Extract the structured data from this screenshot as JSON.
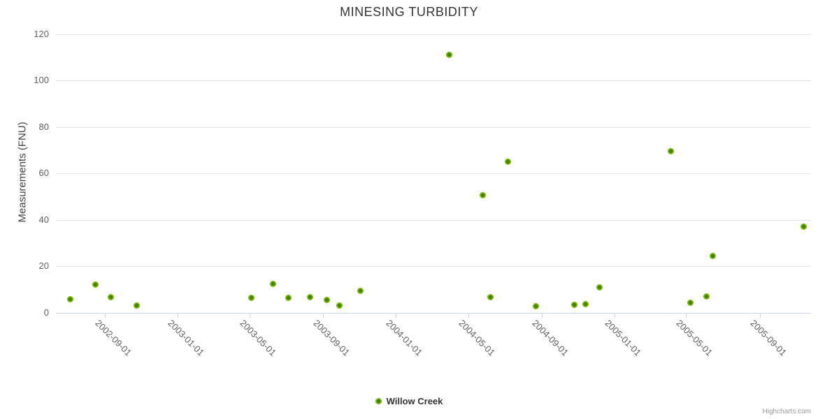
{
  "chart": {
    "title": "MINESING TURBIDITY",
    "y_axis_title": "Measurements (FNU)",
    "series_name": "Willow Creek",
    "credits": "Highcharts.com"
  },
  "chart_data": {
    "type": "scatter",
    "title": "MINESING TURBIDITY",
    "xlabel": "",
    "ylabel": "Measurements (FNU)",
    "ylim": [
      0,
      120
    ],
    "y_ticks": [
      0,
      20,
      40,
      60,
      80,
      100,
      120
    ],
    "x_ticks": [
      "2002-09-01",
      "2003-01-01",
      "2003-05-01",
      "2003-09-01",
      "2004-01-01",
      "2004-05-01",
      "2004-09-01",
      "2005-01-01",
      "2005-05-01",
      "2005-09-01"
    ],
    "x_range": [
      "2002-06-11",
      "2005-11-26"
    ],
    "grid": true,
    "legend_position": "bottom-center",
    "colors": {
      "marker": "#7ab500",
      "marker_core": "#3f7d05",
      "grid_line": "#e6e6e6",
      "axis_line": "#ccd6eb",
      "axis_label": "#606060",
      "title": "#333333",
      "credits": "#999999"
    },
    "series": [
      {
        "name": "Willow Creek",
        "points": [
          [
            "2002-07-05",
            5.6
          ],
          [
            "2002-08-16",
            12.0
          ],
          [
            "2002-09-11",
            6.5
          ],
          [
            "2002-10-24",
            3.1
          ],
          [
            "2003-05-04",
            6.3
          ],
          [
            "2003-06-09",
            12.4
          ],
          [
            "2003-07-05",
            6.4
          ],
          [
            "2003-08-11",
            6.5
          ],
          [
            "2003-09-07",
            5.4
          ],
          [
            "2003-09-28",
            2.9
          ],
          [
            "2003-11-03",
            9.4
          ],
          [
            "2004-03-30",
            111.0
          ],
          [
            "2004-05-26",
            50.5
          ],
          [
            "2004-06-07",
            6.7
          ],
          [
            "2004-07-07",
            65.0
          ],
          [
            "2004-08-23",
            2.6
          ],
          [
            "2004-10-26",
            3.4
          ],
          [
            "2004-11-14",
            3.5
          ],
          [
            "2004-12-07",
            10.8
          ],
          [
            "2005-04-05",
            69.5
          ],
          [
            "2005-05-08",
            4.3
          ],
          [
            "2005-06-04",
            7.0
          ],
          [
            "2005-06-14",
            24.5
          ],
          [
            "2005-11-14",
            37.0
          ]
        ]
      }
    ]
  }
}
